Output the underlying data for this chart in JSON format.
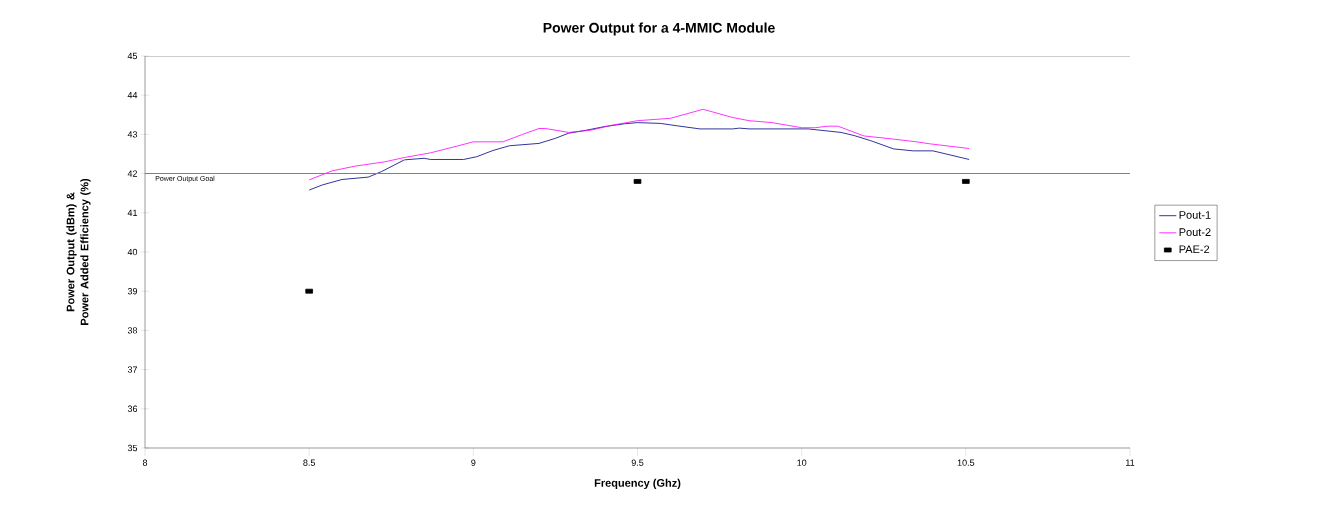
{
  "chart_data": {
    "type": "line",
    "title": "Power Output for a 4-MMIC Module",
    "xlabel": "Frequency (Ghz)",
    "ylabel": "Power Output (dBm) & Power Added Efficiency (%)",
    "xlim": [
      8,
      11
    ],
    "xticks": [
      8,
      8.5,
      9,
      9.5,
      10,
      10.5,
      11
    ],
    "ylim": [
      35,
      45
    ],
    "yticks": [
      35,
      36,
      37,
      38,
      39,
      40,
      41,
      42,
      43,
      44,
      45
    ],
    "legend": "right",
    "grid": false,
    "ref_lines": [
      {
        "axis": "y",
        "value": 42,
        "label": "Power Output Goal",
        "color": "#808080"
      }
    ],
    "series": [
      {
        "name": "Pout-1",
        "color": "#000080",
        "marker": "none",
        "x": [
          8.5,
          8.54,
          8.6,
          8.68,
          8.72,
          8.79,
          8.85,
          8.87,
          8.97,
          9.01,
          9.06,
          9.11,
          9.2,
          9.25,
          9.29,
          9.34,
          9.4,
          9.46,
          9.5,
          9.57,
          9.62,
          9.69,
          9.79,
          9.81,
          9.84,
          10.02,
          10.12,
          10.16,
          10.21,
          10.28,
          10.34,
          10.4,
          10.51
        ],
        "values": [
          41.58,
          41.71,
          41.85,
          41.91,
          42.05,
          42.35,
          42.39,
          42.36,
          42.36,
          42.43,
          42.59,
          42.71,
          42.77,
          42.9,
          43.03,
          43.1,
          43.2,
          43.27,
          43.3,
          43.28,
          43.22,
          43.14,
          43.14,
          43.16,
          43.14,
          43.14,
          43.05,
          42.97,
          42.84,
          42.63,
          42.58,
          42.58,
          42.36
        ]
      },
      {
        "name": "Pout-2",
        "color": "#ff00ff",
        "marker": "none",
        "x": [
          8.5,
          8.57,
          8.64,
          8.73,
          8.79,
          8.87,
          8.95,
          9.0,
          9.09,
          9.15,
          9.2,
          9.22,
          9.29,
          9.36,
          9.42,
          9.5,
          9.6,
          9.7,
          9.79,
          9.84,
          9.91,
          10.0,
          10.04,
          10.08,
          10.11,
          10.19,
          10.28,
          10.35,
          10.39,
          10.51
        ],
        "values": [
          41.84,
          42.07,
          42.19,
          42.3,
          42.41,
          42.53,
          42.7,
          42.81,
          42.81,
          43.0,
          43.15,
          43.15,
          43.05,
          43.11,
          43.23,
          43.35,
          43.41,
          43.64,
          43.43,
          43.35,
          43.3,
          43.17,
          43.17,
          43.21,
          43.21,
          42.96,
          42.88,
          42.81,
          42.76,
          42.64
        ]
      },
      {
        "name": "PAE-2",
        "type": "scatter",
        "color": "#000000",
        "marker": "square",
        "x": [
          8.5,
          9.5,
          10.5
        ],
        "values": [
          39,
          41.8,
          41.8
        ]
      }
    ]
  }
}
